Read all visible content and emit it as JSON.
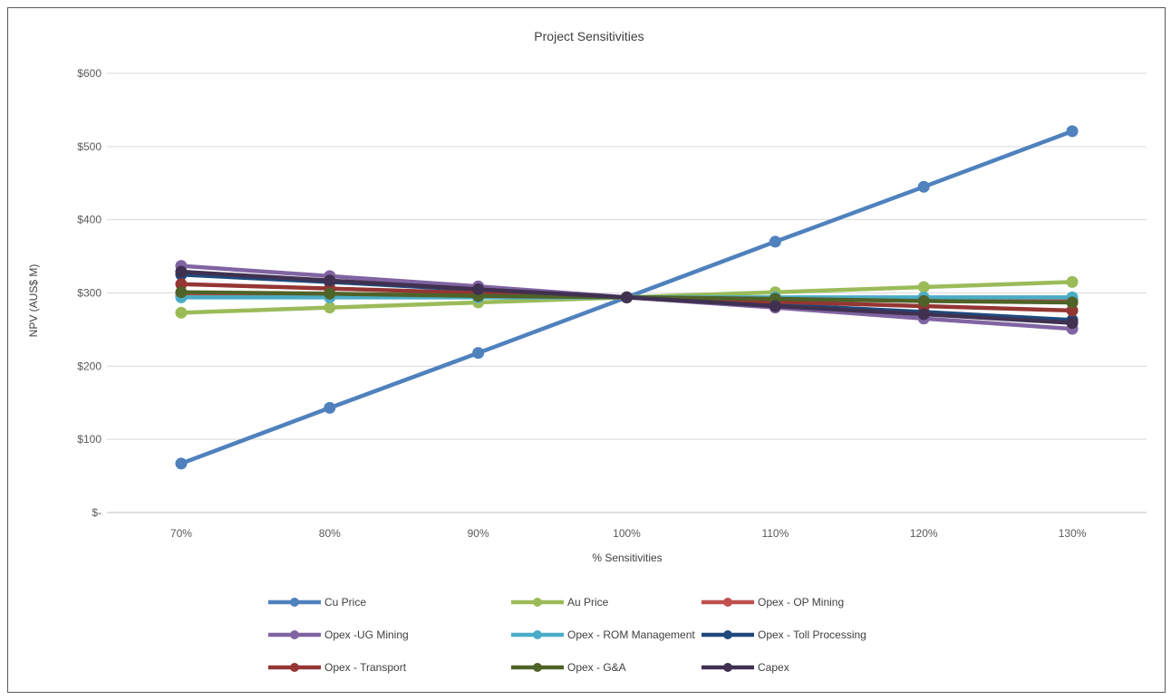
{
  "chart_data": {
    "type": "line",
    "title": "Project Sensitivities",
    "xlabel": "% Sensitivities",
    "ylabel": "NPV (AUS$ M)",
    "categories": [
      "70%",
      "80%",
      "90%",
      "100%",
      "110%",
      "120%",
      "130%"
    ],
    "ylim": [
      0,
      600
    ],
    "yticks": [
      0,
      100,
      200,
      300,
      400,
      500,
      600
    ],
    "ytick_labels": [
      "$-",
      "$100",
      "$200",
      "$300",
      "$400",
      "$500",
      "$600"
    ],
    "grid": true,
    "legend_position": "bottom",
    "series": [
      {
        "name": "Cu Price",
        "color": "#4F81BD",
        "values": [
          67,
          143,
          218,
          294,
          370,
          445,
          521
        ]
      },
      {
        "name": "Au Price",
        "color": "#9BBB59",
        "values": [
          273,
          280,
          287,
          294,
          301,
          308,
          315
        ]
      },
      {
        "name": "Opex - OP Mining",
        "color": "#C0504D",
        "values": [
          297,
          296,
          295,
          294,
          293,
          292,
          291
        ]
      },
      {
        "name": "Opex -UG Mining",
        "color": "#8064A2",
        "values": [
          337,
          323,
          309,
          294,
          280,
          265,
          251
        ]
      },
      {
        "name": "Opex - ROM Management",
        "color": "#4BACC6",
        "values": [
          294,
          294,
          294,
          294,
          294,
          294,
          294
        ]
      },
      {
        "name": "Opex - Toll Processing",
        "color": "#1F497D",
        "values": [
          325,
          315,
          304,
          294,
          284,
          274,
          263
        ]
      },
      {
        "name": "Opex - Transport",
        "color": "#943634",
        "values": [
          312,
          306,
          300,
          294,
          288,
          282,
          276
        ]
      },
      {
        "name": "Opex - G&A",
        "color": "#4F6228",
        "values": [
          301,
          299,
          296,
          294,
          292,
          289,
          287
        ]
      },
      {
        "name": "Capex",
        "color": "#403151",
        "values": [
          329,
          317,
          305,
          294,
          282,
          271,
          259
        ]
      }
    ]
  }
}
